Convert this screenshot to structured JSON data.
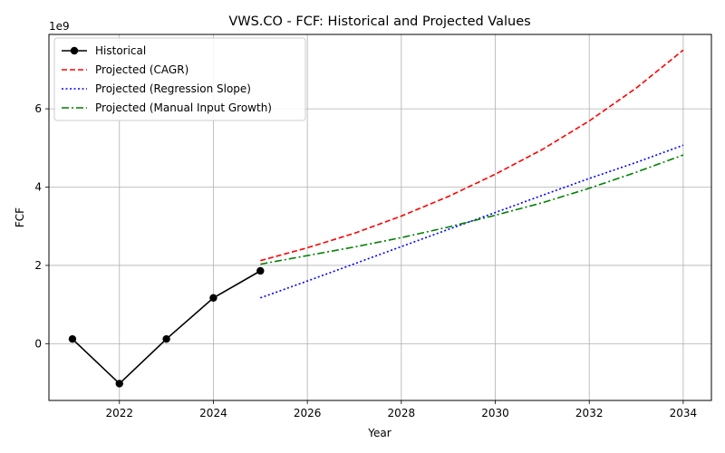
{
  "chart_data": {
    "type": "line",
    "title": "VWS.CO - FCF: Historical and Projected Values",
    "xlabel": "Year",
    "ylabel": "FCF",
    "y_scale_label": "1e9",
    "xlim": [
      2020.5,
      2034.6
    ],
    "ylim": [
      -1.45,
      7.9
    ],
    "y_units_multiplier": 1000000000,
    "x_ticks": [
      2022,
      2024,
      2026,
      2028,
      2030,
      2032,
      2034
    ],
    "y_ticks": [
      0,
      2,
      4,
      6
    ],
    "grid": true,
    "legend_position": "top-left",
    "series": [
      {
        "name": "Historical",
        "color": "#000000",
        "style": "solid",
        "marker": "circle",
        "x": [
          2021,
          2022,
          2023,
          2024,
          2025
        ],
        "y": [
          0.12,
          -1.02,
          0.12,
          1.17,
          1.86
        ]
      },
      {
        "name": "Projected (CAGR)",
        "color": "#ff0000",
        "style": "dashed",
        "marker": "none",
        "x": [
          2025,
          2026,
          2027,
          2028,
          2029,
          2030,
          2031,
          2032,
          2033,
          2034
        ],
        "y": [
          2.12,
          2.45,
          2.82,
          3.26,
          3.76,
          4.33,
          4.96,
          5.69,
          6.53,
          7.5
        ]
      },
      {
        "name": "Projected (Regression Slope)",
        "color": "#0000ff",
        "style": "dotted",
        "marker": "none",
        "x": [
          2025,
          2026,
          2027,
          2028,
          2029,
          2030,
          2031,
          2032,
          2033,
          2034
        ],
        "y": [
          1.17,
          1.6,
          2.04,
          2.48,
          2.92,
          3.35,
          3.79,
          4.22,
          4.63,
          5.07
        ]
      },
      {
        "name": "Projected (Manual Input Growth)",
        "color": "#008000",
        "style": "dashdot",
        "marker": "none",
        "x": [
          2025,
          2026,
          2027,
          2028,
          2029,
          2030,
          2031,
          2032,
          2033,
          2034
        ],
        "y": [
          2.03,
          2.25,
          2.47,
          2.71,
          2.98,
          3.28,
          3.6,
          3.97,
          4.38,
          4.82
        ]
      }
    ]
  }
}
